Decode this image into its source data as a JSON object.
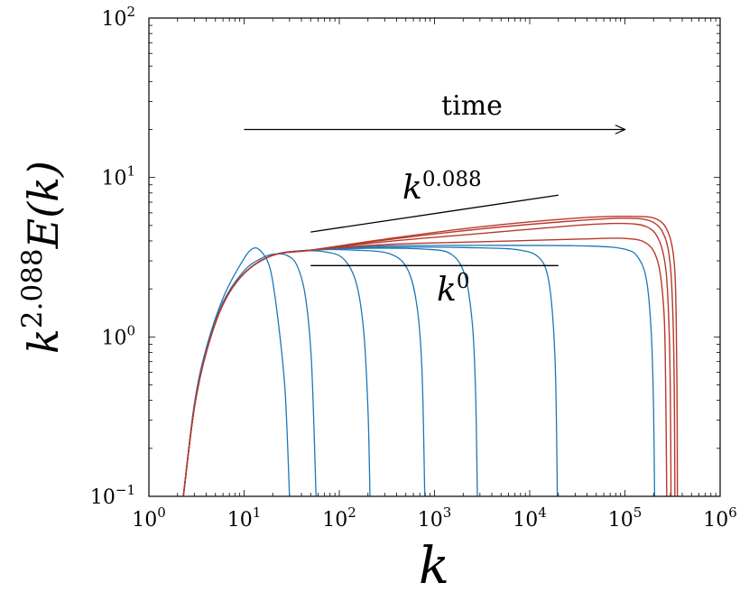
{
  "chart_data": {
    "type": "line",
    "xscale": "log",
    "yscale": "log",
    "xlim": [
      1,
      1000000
    ],
    "ylim": [
      0.1,
      100
    ],
    "xlabel": {
      "base": "k",
      "sup": ""
    },
    "ylabel": {
      "base": "k",
      "sup": "2.088",
      "tail": "E(k)"
    },
    "x_ticks": [
      {
        "value": 1,
        "base": "10",
        "exp": "0"
      },
      {
        "value": 10,
        "base": "10",
        "exp": "1"
      },
      {
        "value": 100,
        "base": "10",
        "exp": "2"
      },
      {
        "value": 1000,
        "base": "10",
        "exp": "3"
      },
      {
        "value": 10000,
        "base": "10",
        "exp": "4"
      },
      {
        "value": 100000,
        "base": "10",
        "exp": "5"
      },
      {
        "value": 1000000,
        "base": "10",
        "exp": "6"
      }
    ],
    "y_ticks": [
      {
        "value": 0.1,
        "base": "10",
        "exp": "−1"
      },
      {
        "value": 1,
        "base": "10",
        "exp": "0"
      },
      {
        "value": 10,
        "base": "10",
        "exp": "1"
      },
      {
        "value": 100,
        "base": "10",
        "exp": "2"
      }
    ],
    "colors": {
      "early": "#1f77b4",
      "late": "#b8392b",
      "annotation": "#000000"
    },
    "series": [
      {
        "group": "early",
        "points": [
          [
            2.3,
            0.1
          ],
          [
            3,
            0.38
          ],
          [
            4,
            0.85
          ],
          [
            6,
            1.75
          ],
          [
            9,
            2.8
          ],
          [
            12,
            3.55
          ],
          [
            15,
            3.45
          ],
          [
            19,
            2.6
          ],
          [
            23,
            1.2
          ],
          [
            27,
            0.45
          ],
          [
            30,
            0.1
          ]
        ]
      },
      {
        "group": "early",
        "points": [
          [
            2.3,
            0.1
          ],
          [
            3,
            0.37
          ],
          [
            4,
            0.82
          ],
          [
            6,
            1.65
          ],
          [
            10,
            2.6
          ],
          [
            15,
            3.1
          ],
          [
            20,
            3.3
          ],
          [
            28,
            3.25
          ],
          [
            36,
            2.8
          ],
          [
            44,
            1.8
          ],
          [
            51,
            0.7
          ],
          [
            57,
            0.1
          ]
        ]
      },
      {
        "group": "early",
        "points": [
          [
            2.3,
            0.1
          ],
          [
            3,
            0.36
          ],
          [
            4,
            0.8
          ],
          [
            6,
            1.6
          ],
          [
            10,
            2.5
          ],
          [
            20,
            3.25
          ],
          [
            40,
            3.45
          ],
          [
            70,
            3.42
          ],
          [
            110,
            3.1
          ],
          [
            150,
            2.2
          ],
          [
            180,
            1.1
          ],
          [
            200,
            0.35
          ],
          [
            210,
            0.1
          ]
        ]
      },
      {
        "group": "early",
        "points": [
          [
            2.3,
            0.1
          ],
          [
            3,
            0.36
          ],
          [
            4,
            0.8
          ],
          [
            6,
            1.6
          ],
          [
            10,
            2.5
          ],
          [
            20,
            3.25
          ],
          [
            50,
            3.5
          ],
          [
            150,
            3.5
          ],
          [
            350,
            3.3
          ],
          [
            530,
            2.6
          ],
          [
            660,
            1.5
          ],
          [
            740,
            0.6
          ],
          [
            790,
            0.1
          ]
        ]
      },
      {
        "group": "early",
        "points": [
          [
            2.3,
            0.1
          ],
          [
            3,
            0.36
          ],
          [
            4,
            0.8
          ],
          [
            6,
            1.6
          ],
          [
            10,
            2.5
          ],
          [
            20,
            3.25
          ],
          [
            50,
            3.5
          ],
          [
            200,
            3.6
          ],
          [
            800,
            3.55
          ],
          [
            1500,
            3.3
          ],
          [
            2100,
            2.4
          ],
          [
            2500,
            1.2
          ],
          [
            2700,
            0.45
          ],
          [
            2820,
            0.1
          ]
        ]
      },
      {
        "group": "early",
        "points": [
          [
            2.3,
            0.1
          ],
          [
            3,
            0.36
          ],
          [
            4,
            0.8
          ],
          [
            6,
            1.6
          ],
          [
            10,
            2.5
          ],
          [
            20,
            3.25
          ],
          [
            50,
            3.5
          ],
          [
            300,
            3.65
          ],
          [
            3000,
            3.62
          ],
          [
            8000,
            3.5
          ],
          [
            12500,
            3.15
          ],
          [
            15500,
            2.4
          ],
          [
            17500,
            1.3
          ],
          [
            18800,
            0.5
          ],
          [
            19500,
            0.1
          ]
        ]
      },
      {
        "group": "early",
        "points": [
          [
            2.3,
            0.1
          ],
          [
            3,
            0.36
          ],
          [
            4,
            0.8
          ],
          [
            6,
            1.6
          ],
          [
            10,
            2.5
          ],
          [
            20,
            3.25
          ],
          [
            50,
            3.5
          ],
          [
            300,
            3.72
          ],
          [
            5000,
            3.75
          ],
          [
            40000,
            3.72
          ],
          [
            100000,
            3.55
          ],
          [
            140000,
            3.1
          ],
          [
            170000,
            2.2
          ],
          [
            190000,
            1.0
          ],
          [
            200000,
            0.35
          ],
          [
            205000,
            0.1
          ]
        ]
      },
      {
        "group": "late",
        "points": [
          [
            2.3,
            0.1
          ],
          [
            3,
            0.36
          ],
          [
            4,
            0.8
          ],
          [
            6,
            1.6
          ],
          [
            10,
            2.5
          ],
          [
            20,
            3.25
          ],
          [
            50,
            3.5
          ],
          [
            300,
            3.8
          ],
          [
            3000,
            3.95
          ],
          [
            30000,
            4.1
          ],
          [
            100000,
            4.15
          ],
          [
            170000,
            3.85
          ],
          [
            220000,
            3.0
          ],
          [
            250000,
            1.8
          ],
          [
            265000,
            0.8
          ],
          [
            275000,
            0.1
          ]
        ]
      },
      {
        "group": "late",
        "points": [
          [
            2.3,
            0.1
          ],
          [
            3,
            0.36
          ],
          [
            4,
            0.8
          ],
          [
            6,
            1.6
          ],
          [
            10,
            2.5
          ],
          [
            20,
            3.25
          ],
          [
            50,
            3.5
          ],
          [
            300,
            3.95
          ],
          [
            3000,
            4.45
          ],
          [
            30000,
            5.0
          ],
          [
            90000,
            5.15
          ],
          [
            170000,
            4.9
          ],
          [
            230000,
            4.0
          ],
          [
            270000,
            2.6
          ],
          [
            290000,
            1.2
          ],
          [
            300000,
            0.45
          ],
          [
            305000,
            0.1
          ]
        ]
      },
      {
        "group": "late",
        "points": [
          [
            2.3,
            0.1
          ],
          [
            3,
            0.36
          ],
          [
            4,
            0.8
          ],
          [
            6,
            1.6
          ],
          [
            10,
            2.5
          ],
          [
            20,
            3.25
          ],
          [
            50,
            3.5
          ],
          [
            300,
            4.05
          ],
          [
            3000,
            4.75
          ],
          [
            30000,
            5.35
          ],
          [
            100000,
            5.55
          ],
          [
            190000,
            5.3
          ],
          [
            260000,
            4.3
          ],
          [
            300000,
            2.8
          ],
          [
            320000,
            1.3
          ],
          [
            330000,
            0.45
          ],
          [
            335000,
            0.1
          ]
        ]
      },
      {
        "group": "late",
        "points": [
          [
            2.3,
            0.1
          ],
          [
            3,
            0.36
          ],
          [
            4,
            0.8
          ],
          [
            6,
            1.6
          ],
          [
            10,
            2.5
          ],
          [
            20,
            3.25
          ],
          [
            50,
            3.5
          ],
          [
            300,
            4.1
          ],
          [
            3000,
            4.9
          ],
          [
            30000,
            5.55
          ],
          [
            120000,
            5.7
          ],
          [
            220000,
            5.45
          ],
          [
            290000,
            4.4
          ],
          [
            330000,
            2.9
          ],
          [
            345000,
            1.4
          ],
          [
            352000,
            0.5
          ],
          [
            356000,
            0.1
          ]
        ]
      }
    ],
    "annotations": {
      "time_arrow": {
        "label": "time",
        "from": [
          10,
          20
        ],
        "to": [
          100000,
          20
        ]
      },
      "slope_line": {
        "from": [
          50,
          4.55
        ],
        "to": [
          20000,
          7.75
        ],
        "label_base": "k",
        "label_sup": "0.088"
      },
      "flat_line": {
        "from": [
          50,
          2.8
        ],
        "to": [
          20000,
          2.8
        ],
        "label_base": "k",
        "label_sup": "0"
      }
    }
  }
}
